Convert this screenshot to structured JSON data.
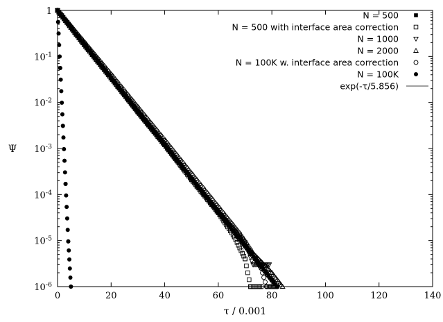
{
  "chart_data": {
    "type": "scatter",
    "xlabel": "τ / 0.001",
    "ylabel": "Ψ",
    "xlim": [
      0,
      140
    ],
    "ylim": [
      1e-06,
      1
    ],
    "yscale": "log",
    "grid": false,
    "legend_placement": "top-right",
    "x_ticks": [
      {
        "value": 0,
        "label": "0"
      },
      {
        "value": 20,
        "label": "20"
      },
      {
        "value": 40,
        "label": "40"
      },
      {
        "value": 60,
        "label": "60"
      },
      {
        "value": 80,
        "label": "80"
      },
      {
        "value": 100,
        "label": "100"
      },
      {
        "value": 120,
        "label": "120"
      },
      {
        "value": 140,
        "label": "140"
      }
    ],
    "y_ticks": [
      {
        "value": 1,
        "mantissa": "1",
        "exponent": ""
      },
      {
        "value": 0.1,
        "mantissa": "10",
        "exponent": "-1"
      },
      {
        "value": 0.01,
        "mantissa": "10",
        "exponent": "-2"
      },
      {
        "value": 0.001,
        "mantissa": "10",
        "exponent": "-3"
      },
      {
        "value": 0.0001,
        "mantissa": "10",
        "exponent": "-4"
      },
      {
        "value": 1e-05,
        "mantissa": "10",
        "exponent": "-5"
      },
      {
        "value": 1e-06,
        "mantissa": "10",
        "exponent": "-6"
      }
    ],
    "series": [
      {
        "name": "N = 500",
        "marker": "filled-square",
        "points": [
          [
            0,
            1
          ],
          [
            10,
            0.18
          ],
          [
            20,
            0.034
          ],
          [
            30,
            0.0063
          ],
          [
            40,
            0.0012
          ],
          [
            50,
            0.00022
          ],
          [
            60,
            4.1e-05
          ],
          [
            70,
            7.7e-06
          ],
          [
            80,
            1.4e-06
          ],
          [
            82,
            1e-06
          ]
        ]
      },
      {
        "name": "N = 500 with interface area correction",
        "marker": "open-square",
        "points": [
          [
            0,
            1
          ],
          [
            10,
            0.18
          ],
          [
            20,
            0.034
          ],
          [
            30,
            0.0062
          ],
          [
            40,
            0.0012
          ],
          [
            50,
            0.00021
          ],
          [
            60,
            4e-05
          ],
          [
            66,
            1.2e-05
          ],
          [
            70,
            4e-06
          ],
          [
            72,
            1e-06
          ],
          [
            76,
            1e-06
          ]
        ]
      },
      {
        "name": "N = 1000",
        "marker": "open-triangle-down",
        "points": [
          [
            0,
            1
          ],
          [
            10,
            0.18
          ],
          [
            20,
            0.034
          ],
          [
            30,
            0.0063
          ],
          [
            40,
            0.0012
          ],
          [
            50,
            0.00022
          ],
          [
            60,
            4.2e-05
          ],
          [
            66,
            1.6e-05
          ],
          [
            70,
            9e-06
          ],
          [
            73,
            3e-06
          ],
          [
            76,
            3e-06
          ],
          [
            79,
            3e-06
          ]
        ]
      },
      {
        "name": "N = 2000",
        "marker": "open-triangle-up",
        "points": [
          [
            0,
            1
          ],
          [
            10,
            0.18
          ],
          [
            20,
            0.034
          ],
          [
            30,
            0.0064
          ],
          [
            40,
            0.0012
          ],
          [
            50,
            0.00023
          ],
          [
            60,
            4.4e-05
          ],
          [
            67,
            1.5e-05
          ],
          [
            71,
            7e-06
          ],
          [
            76,
            3.5e-06
          ],
          [
            80,
            2e-06
          ],
          [
            84,
            1e-06
          ]
        ]
      },
      {
        "name": "N = 100K w. interface area correction",
        "marker": "open-circle",
        "points": [
          [
            0,
            1
          ],
          [
            10,
            0.2
          ],
          [
            20,
            0.04
          ],
          [
            30,
            0.0077
          ],
          [
            40,
            0.0015
          ],
          [
            50,
            0.00028
          ],
          [
            60,
            5.3e-05
          ],
          [
            68,
            1.4e-05
          ],
          [
            72,
            6.3e-06
          ],
          [
            76,
            2.5e-06
          ],
          [
            78,
            1e-06
          ],
          [
            82,
            1e-06
          ]
        ]
      },
      {
        "name": "N = 100K",
        "marker": "filled-circle",
        "points": [
          [
            0,
            1
          ],
          [
            1,
            0.056
          ],
          [
            2,
            0.0031
          ],
          [
            3,
            0.00017
          ],
          [
            4,
            9.6e-06
          ],
          [
            5,
            1e-06
          ]
        ]
      },
      {
        "name": "exp(-τ/5.856)",
        "marker": "line",
        "function": "exp(-tau/5.856)"
      }
    ]
  }
}
